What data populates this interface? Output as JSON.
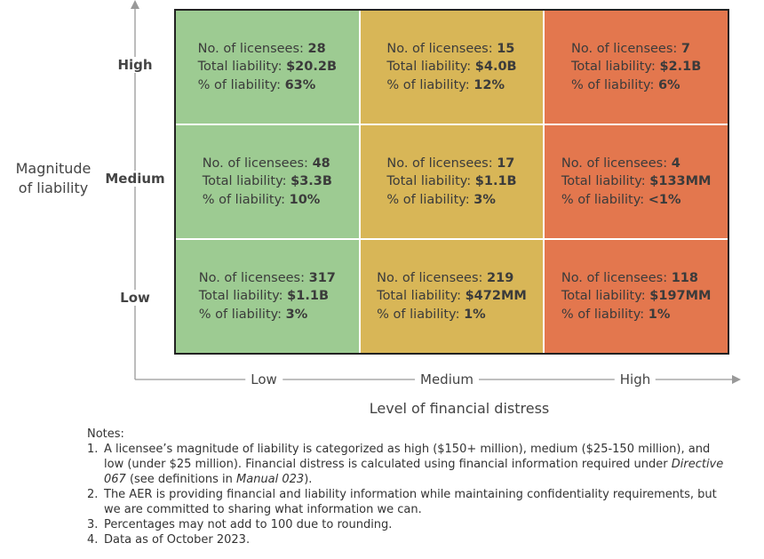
{
  "y_axis": {
    "title": "Magnitude of liability",
    "levels": [
      "High",
      "Medium",
      "Low"
    ]
  },
  "x_axis": {
    "title": "Level of financial distress",
    "levels": [
      "Low",
      "Medium",
      "High"
    ]
  },
  "cell_labels": [
    "No. of licensees:",
    "Total liability:",
    "% of liability:"
  ],
  "cells": [
    [
      {
        "licensees": "28",
        "liability": "$20.2B",
        "share": "63%"
      },
      {
        "licensees": "15",
        "liability": "$4.0B",
        "share": "12%"
      },
      {
        "licensees": "7",
        "liability": "$2.1B",
        "share": "6%"
      }
    ],
    [
      {
        "licensees": "48",
        "liability": "$3.3B",
        "share": "10%"
      },
      {
        "licensees": "17",
        "liability": "$1.1B",
        "share": "3%"
      },
      {
        "licensees": "4",
        "liability": "$133MM",
        "share": "<1%"
      }
    ],
    [
      {
        "licensees": "317",
        "liability": "$1.1B",
        "share": "3%"
      },
      {
        "licensees": "219",
        "liability": "$472MM",
        "share": "1%"
      },
      {
        "licensees": "118",
        "liability": "$197MM",
        "share": "1%"
      }
    ]
  ],
  "notes": {
    "title": "Notes:",
    "items": [
      {
        "number": "1.",
        "parts": [
          "A licensee’s magnitude of liability is categorized as high ($150+ million), medium ($25-150 million), and low (under $25 million). Financial distress is calculated using financial information required under ",
          "Directive 067",
          " (see definitions in ",
          "Manual 023",
          ")."
        ]
      },
      {
        "number": "2.",
        "parts": [
          "The AER is providing financial and liability information while maintaining confidentiality requirements, but we are committed to sharing what information we can."
        ]
      },
      {
        "number": "3.",
        "parts": [
          "Percentages may not add to 100 due to rounding."
        ]
      },
      {
        "number": "4.",
        "parts": [
          "Data as of October 2023."
        ]
      }
    ]
  }
}
